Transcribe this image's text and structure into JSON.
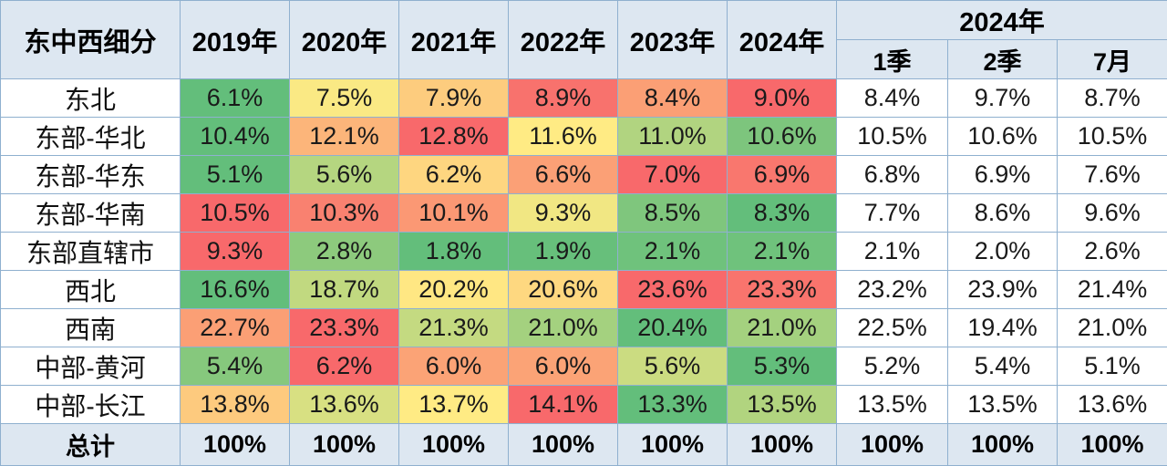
{
  "chart_data": {
    "type": "table",
    "header": {
      "corner": "东中西细分",
      "year_columns": [
        "2019年",
        "2020年",
        "2021年",
        "2022年",
        "2023年",
        "2024年"
      ],
      "group_label": "2024年",
      "sub_columns": [
        "1季",
        "2季",
        "7月"
      ]
    },
    "rows": [
      {
        "label": "东北",
        "years": [
          "6.1%",
          "7.5%",
          "7.9%",
          "8.9%",
          "8.4%",
          "9.0%"
        ],
        "sub": [
          "8.4%",
          "9.7%",
          "8.7%"
        ]
      },
      {
        "label": "东部-华北",
        "years": [
          "10.4%",
          "12.1%",
          "12.8%",
          "11.6%",
          "11.0%",
          "10.6%"
        ],
        "sub": [
          "10.5%",
          "10.6%",
          "10.5%"
        ]
      },
      {
        "label": "东部-华东",
        "years": [
          "5.1%",
          "5.6%",
          "6.2%",
          "6.6%",
          "7.0%",
          "6.9%"
        ],
        "sub": [
          "6.8%",
          "6.9%",
          "7.6%"
        ]
      },
      {
        "label": "东部-华南",
        "years": [
          "10.5%",
          "10.3%",
          "10.1%",
          "9.3%",
          "8.5%",
          "8.3%"
        ],
        "sub": [
          "7.7%",
          "8.6%",
          "9.6%"
        ]
      },
      {
        "label": "东部直辖市",
        "years": [
          "9.3%",
          "2.8%",
          "1.8%",
          "1.9%",
          "2.1%",
          "2.1%"
        ],
        "sub": [
          "2.1%",
          "2.0%",
          "2.6%"
        ]
      },
      {
        "label": "西北",
        "years": [
          "16.6%",
          "18.7%",
          "20.2%",
          "20.6%",
          "23.6%",
          "23.3%"
        ],
        "sub": [
          "23.2%",
          "23.9%",
          "21.4%"
        ]
      },
      {
        "label": "西南",
        "years": [
          "22.7%",
          "23.3%",
          "21.3%",
          "21.0%",
          "20.4%",
          "21.0%"
        ],
        "sub": [
          "22.5%",
          "19.4%",
          "21.0%"
        ]
      },
      {
        "label": "中部-黄河",
        "years": [
          "5.4%",
          "6.2%",
          "6.0%",
          "6.0%",
          "5.6%",
          "5.3%"
        ],
        "sub": [
          "5.2%",
          "5.4%",
          "5.1%"
        ]
      },
      {
        "label": "中部-长江",
        "years": [
          "13.8%",
          "13.6%",
          "13.7%",
          "14.1%",
          "13.3%",
          "13.5%"
        ],
        "sub": [
          "13.5%",
          "13.5%",
          "13.6%"
        ]
      }
    ],
    "total": {
      "label": "总计",
      "years": [
        "100%",
        "100%",
        "100%",
        "100%",
        "100%",
        "100%"
      ],
      "sub": [
        "100%",
        "100%",
        "100%"
      ]
    },
    "heatmap": {
      "applies_to": "year_columns",
      "scale": "per-row",
      "low_color": "#63be7b",
      "mid_color": "#ffeb84",
      "high_color": "#f8696b"
    }
  }
}
